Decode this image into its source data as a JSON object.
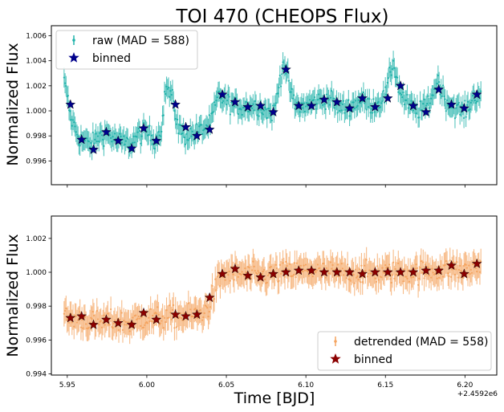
{
  "chart_data": [
    {
      "type": "scatter",
      "title": "TOI 470 (CHEOPS Flux)",
      "xlabel": "",
      "ylabel": "Normalized Flux",
      "xlim": [
        5.94,
        6.22
      ],
      "ylim": [
        0.9941,
        1.0068
      ],
      "x_ticks": [
        5.95,
        6.0,
        6.05,
        6.1,
        6.15,
        6.2
      ],
      "y_ticks": [
        0.996,
        0.998,
        1.0,
        1.002,
        1.004,
        1.006
      ],
      "y_tick_labels": [
        "0.996",
        "0.998",
        "1.000",
        "1.002",
        "1.004",
        "1.006"
      ],
      "legend": [
        "raw (MAD = 588)",
        "binned"
      ],
      "legend_position": "top-left",
      "raw_color": "#20b2aa",
      "binned_color": "#00008b",
      "raw_trend": {
        "x": [
          5.948,
          5.95,
          5.952,
          5.958,
          5.965,
          5.97,
          5.975,
          5.98,
          5.985,
          5.99,
          5.995,
          6.0,
          6.005,
          6.008,
          6.01,
          6.012,
          6.016,
          6.02,
          6.024,
          6.03,
          6.036,
          6.04,
          6.045,
          6.05,
          6.055,
          6.06,
          6.065,
          6.07,
          6.075,
          6.08,
          6.083,
          6.086,
          6.09,
          6.093,
          6.097,
          6.1,
          6.105,
          6.11,
          6.115,
          6.12,
          6.125,
          6.13,
          6.135,
          6.14,
          6.145,
          6.15,
          6.155,
          6.158,
          6.162,
          6.165,
          6.17,
          6.175,
          6.18,
          6.183,
          6.187,
          6.19,
          6.195,
          6.2,
          6.205,
          6.21
        ],
        "y": [
          1.0023,
          1.0012,
          0.9995,
          0.9977,
          0.9973,
          0.998,
          0.9982,
          0.9977,
          0.9975,
          0.9974,
          0.9981,
          0.9983,
          0.9977,
          0.9982,
          0.9994,
          1.002,
          1.001,
          0.9986,
          0.998,
          0.9982,
          0.9986,
          0.999,
          1.0012,
          1.0008,
          1.0004,
          1.0003,
          1.0004,
          1.0004,
          1.0,
          0.9998,
          1.002,
          1.004,
          1.0018,
          1.0004,
          1.0003,
          1.0004,
          1.0007,
          1.0009,
          1.001,
          1.0003,
          1.0002,
          1.0005,
          1.0009,
          1.0004,
          1.0006,
          1.0012,
          1.004,
          1.002,
          1.0008,
          1.0004,
          1.0,
          1.0002,
          1.0014,
          1.0025,
          1.0011,
          1.0005,
          1.0002,
          0.9999,
          1.001,
          1.0015
        ]
      },
      "binned": {
        "x": [
          5.952,
          5.959,
          5.9665,
          5.9745,
          5.982,
          5.9905,
          5.998,
          6.006,
          6.018,
          6.0245,
          6.0315,
          6.0395,
          6.0475,
          6.0555,
          6.0635,
          6.0715,
          6.0795,
          6.0875,
          6.0955,
          6.1035,
          6.1115,
          6.1195,
          6.1275,
          6.1355,
          6.1435,
          6.1515,
          6.1595,
          6.1675,
          6.1755,
          6.1835,
          6.1915,
          6.1995,
          6.2075
        ],
        "y": [
          1.0005,
          0.9977,
          0.9969,
          0.9983,
          0.9976,
          0.997,
          0.9986,
          0.9976,
          1.0005,
          0.9987,
          0.998,
          0.9985,
          1.0013,
          1.0007,
          1.0003,
          1.0004,
          0.9999,
          1.0033,
          1.0004,
          1.0004,
          1.0009,
          1.0007,
          1.0002,
          1.001,
          1.0003,
          1.001,
          1.002,
          1.0004,
          0.9999,
          1.0017,
          1.0005,
          1.0002,
          1.0013
        ]
      }
    },
    {
      "type": "scatter",
      "title": "",
      "xlabel": "Time [BJD]",
      "ylabel": "Normalized Flux",
      "x_offset_label": "+2.4592e6",
      "xlim": [
        5.94,
        6.22
      ],
      "ylim": [
        0.99393,
        1.00332
      ],
      "x_ticks": [
        5.95,
        6.0,
        6.05,
        6.1,
        6.15,
        6.2
      ],
      "x_tick_labels": [
        "5.95",
        "6.00",
        "6.05",
        "6.10",
        "6.15",
        "6.20"
      ],
      "y_ticks": [
        0.994,
        0.996,
        0.998,
        1.0,
        1.002
      ],
      "y_tick_labels": [
        "0.994",
        "0.996",
        "0.998",
        "1.000",
        "1.002"
      ],
      "legend": [
        "detrended (MAD = 558)",
        "binned"
      ],
      "legend_position": "bottom-right",
      "raw_color": "#f4a460",
      "binned_color": "#8b0000",
      "raw_trend": {
        "x": [
          5.948,
          5.96,
          5.97,
          5.98,
          5.99,
          6.0,
          6.01,
          6.02,
          6.03,
          6.037,
          6.04,
          6.043,
          6.046,
          6.05,
          6.06,
          6.07,
          6.08,
          6.09,
          6.1,
          6.11,
          6.12,
          6.13,
          6.14,
          6.15,
          6.16,
          6.17,
          6.18,
          6.19,
          6.2,
          6.21
        ],
        "y": [
          0.9973,
          0.9972,
          0.997,
          0.9971,
          0.997,
          0.9973,
          0.9973,
          0.9974,
          0.9975,
          0.9977,
          0.9982,
          0.999,
          0.9996,
          0.9999,
          0.9999,
          0.9998,
          0.9999,
          1.0,
          1.0001,
          1.0,
          1.0,
          1.0,
          0.9999,
          1.0,
          1.0,
          1.0,
          1.0001,
          1.0002,
          1.0001,
          1.0004
        ]
      },
      "binned": {
        "x": [
          5.952,
          5.959,
          5.9665,
          5.9745,
          5.982,
          5.9905,
          5.998,
          6.006,
          6.018,
          6.0245,
          6.0315,
          6.0395,
          6.0475,
          6.0555,
          6.0635,
          6.0715,
          6.0795,
          6.0875,
          6.0955,
          6.1035,
          6.1115,
          6.1195,
          6.1275,
          6.1355,
          6.1435,
          6.1515,
          6.1595,
          6.1675,
          6.1755,
          6.1835,
          6.1915,
          6.1995,
          6.2075
        ],
        "y": [
          0.9973,
          0.9974,
          0.9969,
          0.9972,
          0.997,
          0.9969,
          0.9976,
          0.9972,
          0.9975,
          0.9974,
          0.9975,
          0.9985,
          0.9999,
          1.0002,
          0.9998,
          0.9997,
          0.9999,
          1.0,
          1.0001,
          1.0001,
          1.0,
          1.0,
          1.0,
          0.9999,
          1.0,
          1.0,
          1.0,
          1.0,
          1.0001,
          1.0001,
          1.0004,
          0.9999,
          1.0005
        ]
      }
    }
  ]
}
